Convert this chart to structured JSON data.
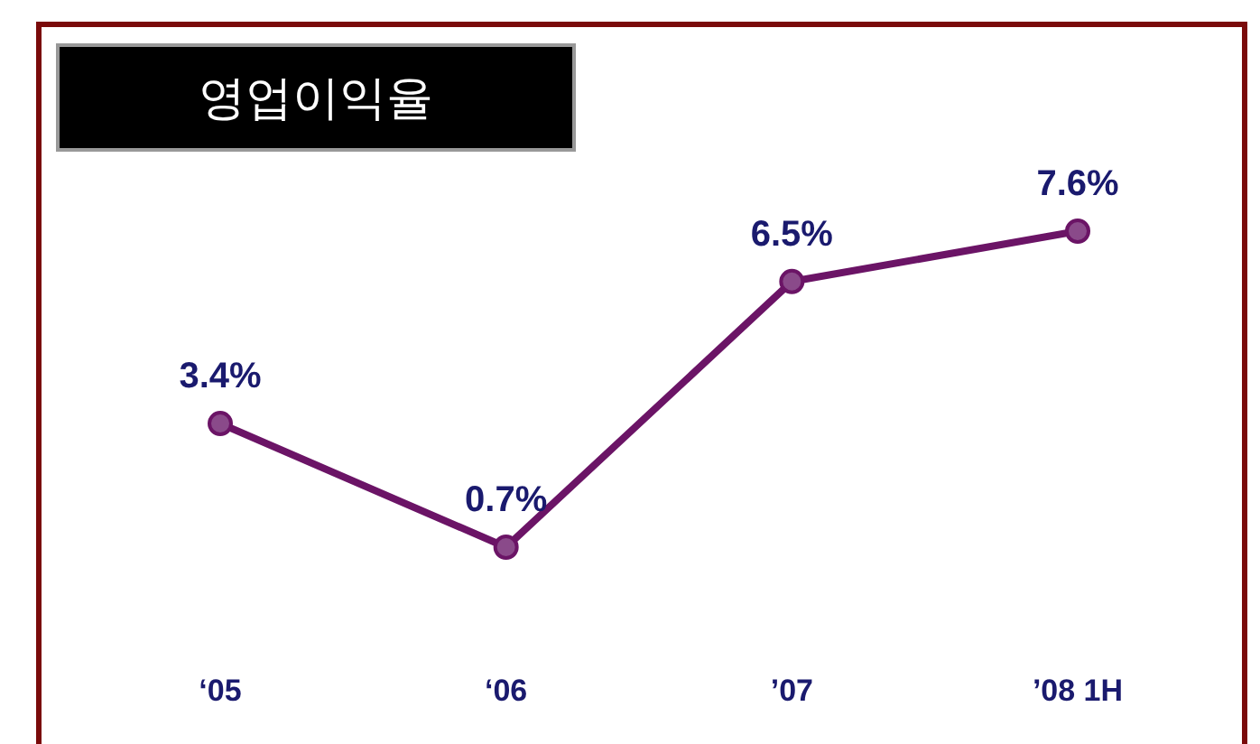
{
  "chart_data": {
    "type": "line",
    "title": "영업이익율",
    "categories": [
      "‘05",
      "‘06",
      "’07",
      "’08 1H"
    ],
    "values": [
      3.4,
      0.7,
      6.5,
      7.6
    ],
    "value_labels": [
      "3.4%",
      "0.7%",
      "6.5%",
      "7.6%"
    ],
    "color": "#6b1466",
    "marker": "circle"
  }
}
